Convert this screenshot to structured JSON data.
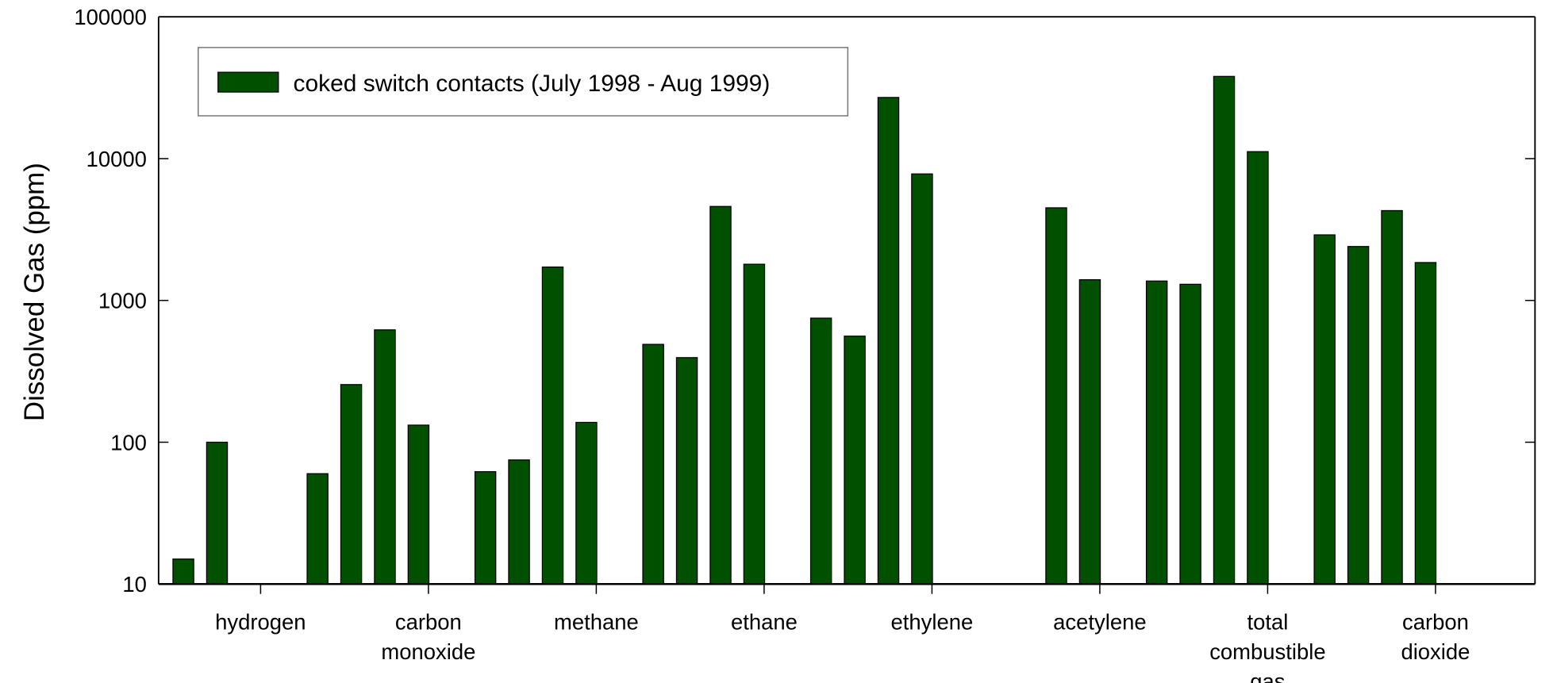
{
  "chart_data": {
    "type": "bar",
    "y_label": "Dissolved Gas (ppm)",
    "legend": "coked switch contacts (July 1998 - Aug 1999)",
    "legend_position": "upper left",
    "color": "#005000",
    "log_scale": true,
    "categories": [
      "hydrogen",
      "carbon monoxide",
      "methane",
      "ethane",
      "ethylene",
      "acetylene",
      "total combustible gas",
      "carbon dioxide"
    ],
    "values": [
      [
        null,
        15,
        100,
        null,
        null
      ],
      [
        60,
        255,
        620,
        132,
        null
      ],
      [
        62,
        75,
        1720,
        138,
        null
      ],
      [
        490,
        395,
        4600,
        1800,
        null
      ],
      [
        750,
        560,
        27000,
        7800,
        null
      ],
      [
        null,
        null,
        4500,
        1400,
        null
      ],
      [
        1370,
        1300,
        38000,
        11200,
        null
      ],
      [
        2900,
        2400,
        4300,
        1850,
        null
      ]
    ],
    "ylim": [
      10,
      100000
    ],
    "yticks": [
      10,
      100,
      1000,
      10000,
      100000
    ]
  }
}
